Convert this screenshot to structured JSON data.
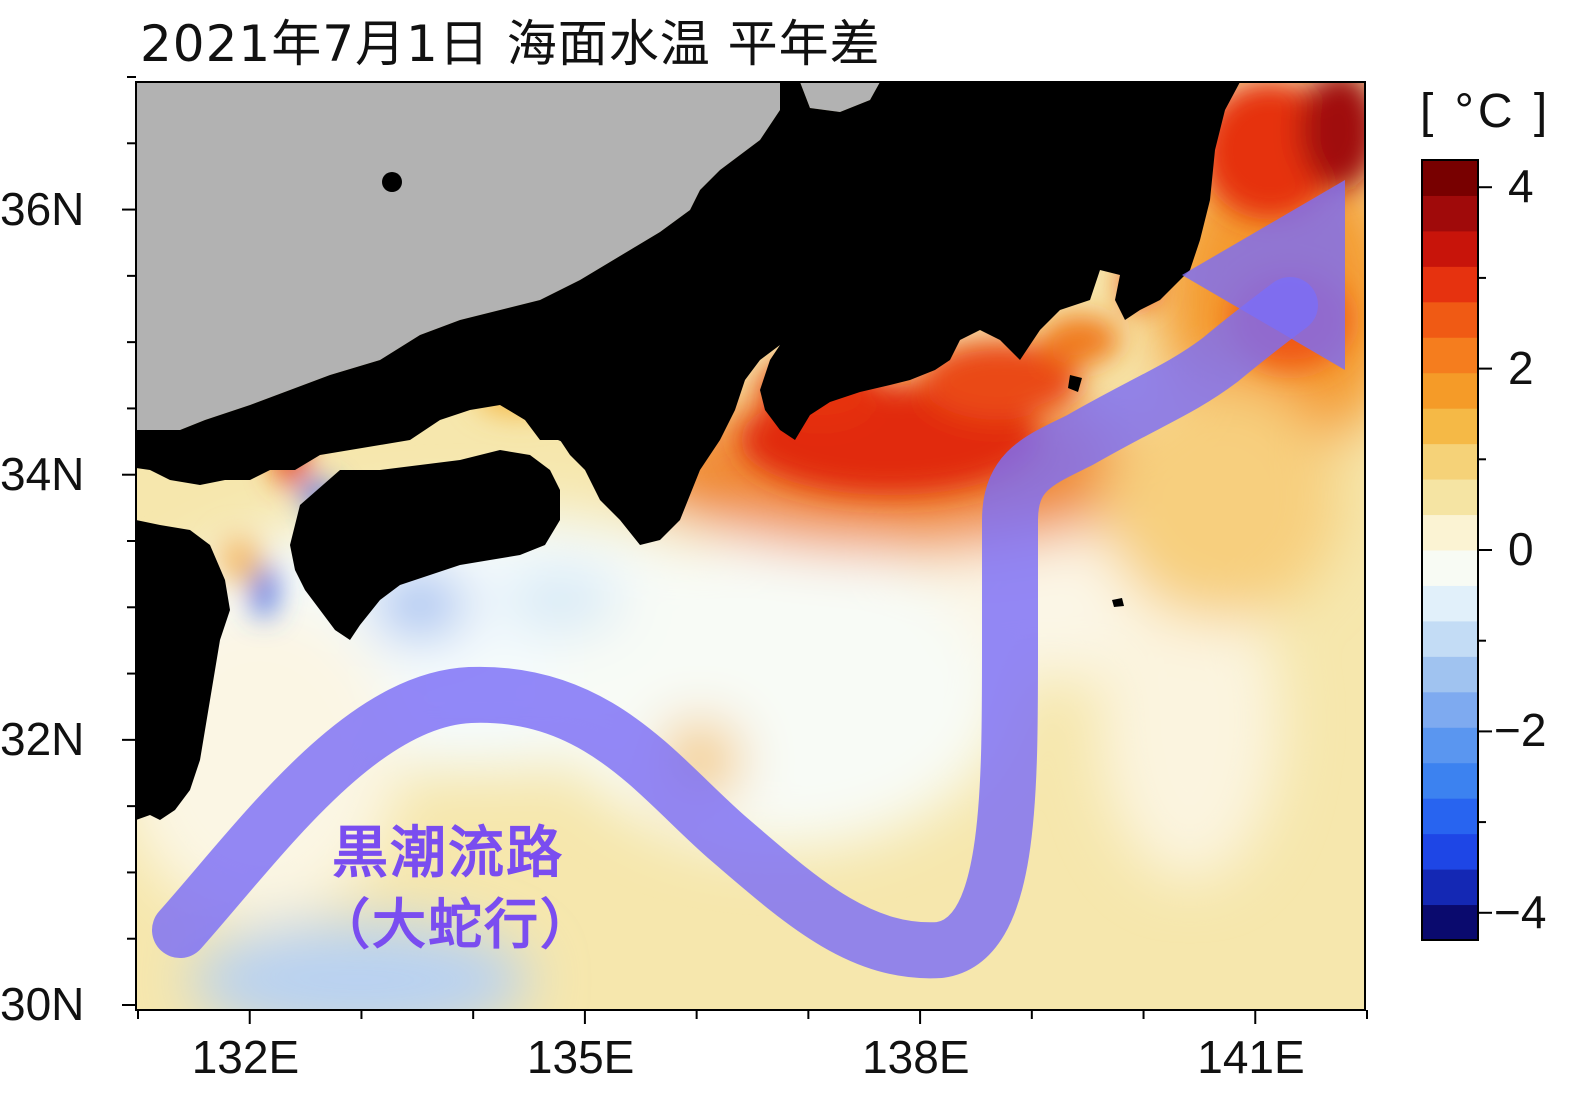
{
  "title": "2021年7月1日 海面水温 平年差",
  "map": {
    "lon_range": [
      131.0,
      142.0
    ],
    "lat_range": [
      30.0,
      37.0
    ],
    "lon_ticks": [
      {
        "label": "132E",
        "lon": 132
      },
      {
        "label": "135E",
        "lon": 135
      },
      {
        "label": "138E",
        "lon": 138
      },
      {
        "label": "141E",
        "lon": 141
      }
    ],
    "lat_ticks": [
      {
        "label": "30N",
        "lat": 30
      },
      {
        "label": "32N",
        "lat": 32
      },
      {
        "label": "34N",
        "lat": 34
      },
      {
        "label": "36N",
        "lat": 36
      }
    ],
    "land_color": "#000000",
    "out_of_scope_land_color": "#b2b2b2"
  },
  "colorbar": {
    "unit": "[ °C ]",
    "min": -4.3,
    "max": 4.3,
    "tick_labels": [
      {
        "label": "4",
        "value": 4
      },
      {
        "label": "2",
        "value": 2
      },
      {
        "label": "0",
        "value": 0
      },
      {
        "label": "−2",
        "value": -2
      },
      {
        "label": "−4",
        "value": -4
      }
    ],
    "colors": [
      "#0a0a6e",
      "#1428b4",
      "#1e46e6",
      "#2864f0",
      "#3c82f0",
      "#5a96f0",
      "#7eaaf0",
      "#a0c3f0",
      "#c3dcf5",
      "#e1f0fa",
      "#f8fbf4",
      "#fbf3d3",
      "#f5e4a3",
      "#f5d278",
      "#f5b946",
      "#f59b28",
      "#f57d1e",
      "#f05a14",
      "#e6320f",
      "#c8140a",
      "#a00a0a",
      "#780000"
    ]
  },
  "annotation": {
    "line1": "黒潮流路",
    "line2": "（大蛇行）",
    "path_color": "#7b6ef6"
  }
}
